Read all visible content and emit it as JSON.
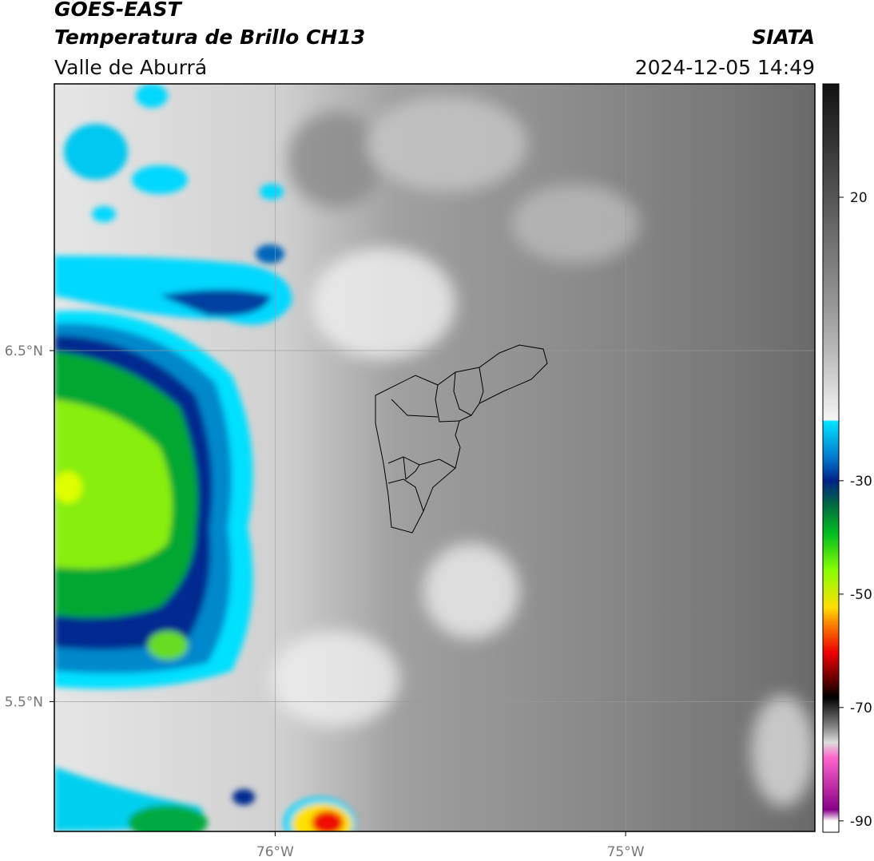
{
  "header": {
    "title": "GOES-EAST",
    "subtitle": "Temperatura de Brillo CH13",
    "region": "Valle de Aburrá",
    "source": "SIATA",
    "datetime": "2024-12-05 14:49"
  },
  "map": {
    "xlim": [
      -76.63,
      -74.46
    ],
    "ylim": [
      5.13,
      7.26
    ],
    "xticks": [
      {
        "value": -76,
        "label": "76°W"
      },
      {
        "value": -75,
        "label": "75°W"
      }
    ],
    "yticks": [
      {
        "value": 6.5,
        "label": "6.5°N"
      },
      {
        "value": 5.5,
        "label": "5.5°N"
      }
    ],
    "grid": true
  },
  "colorbar": {
    "lim": [
      -92,
      40
    ],
    "ticks": [
      20,
      -30,
      -50,
      -70,
      -90
    ]
  }
}
